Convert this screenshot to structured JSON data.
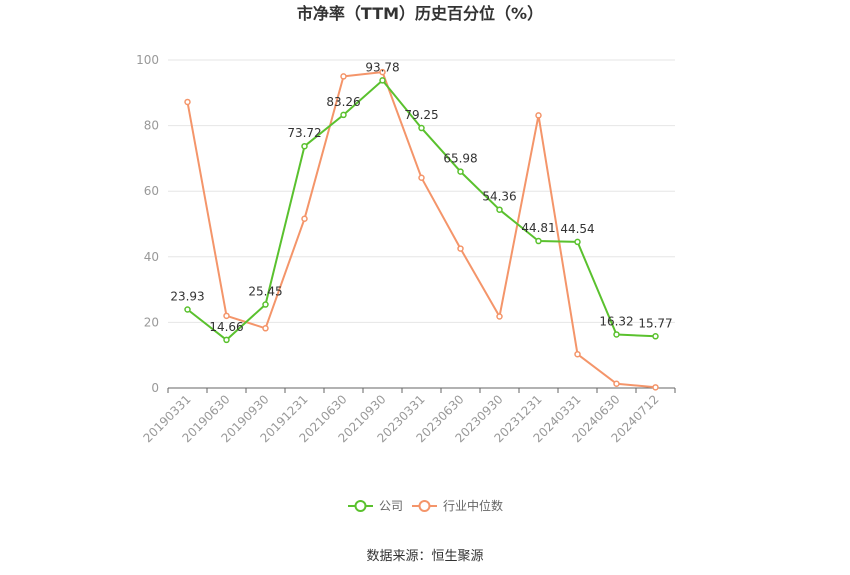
{
  "chart_data": {
    "type": "line",
    "title": "市净率（TTM）历史百分位（%）",
    "categories": [
      "20190331",
      "20190630",
      "20190930",
      "20191231",
      "20210630",
      "20210930",
      "20230331",
      "20230630",
      "20230930",
      "20231231",
      "20240331",
      "20240630",
      "20240712"
    ],
    "series": [
      {
        "name": "公司",
        "color": "#5ac12e",
        "values": [
          23.93,
          14.66,
          25.45,
          73.72,
          83.26,
          93.78,
          79.25,
          65.98,
          54.36,
          44.81,
          44.54,
          16.32,
          15.77
        ],
        "labels": [
          "23.93",
          "14.66",
          "25.45",
          "73.72",
          "83.26",
          "93.78",
          "79.25",
          "65.98",
          "54.36",
          "44.81",
          "44.54",
          "16.32",
          "15.77"
        ]
      },
      {
        "name": "行业中位数",
        "color": "#f4956a",
        "values": [
          87.2,
          22.0,
          18.2,
          51.6,
          95.0,
          96.3,
          64.1,
          42.5,
          21.8,
          83.1,
          10.3,
          1.3,
          0.2
        ]
      }
    ],
    "yticks": [
      "0",
      "20",
      "40",
      "60",
      "80",
      "100"
    ],
    "ylim": [
      0,
      100
    ],
    "grid": true,
    "legend_position": "bottom"
  },
  "source": "数据来源：恒生聚源"
}
